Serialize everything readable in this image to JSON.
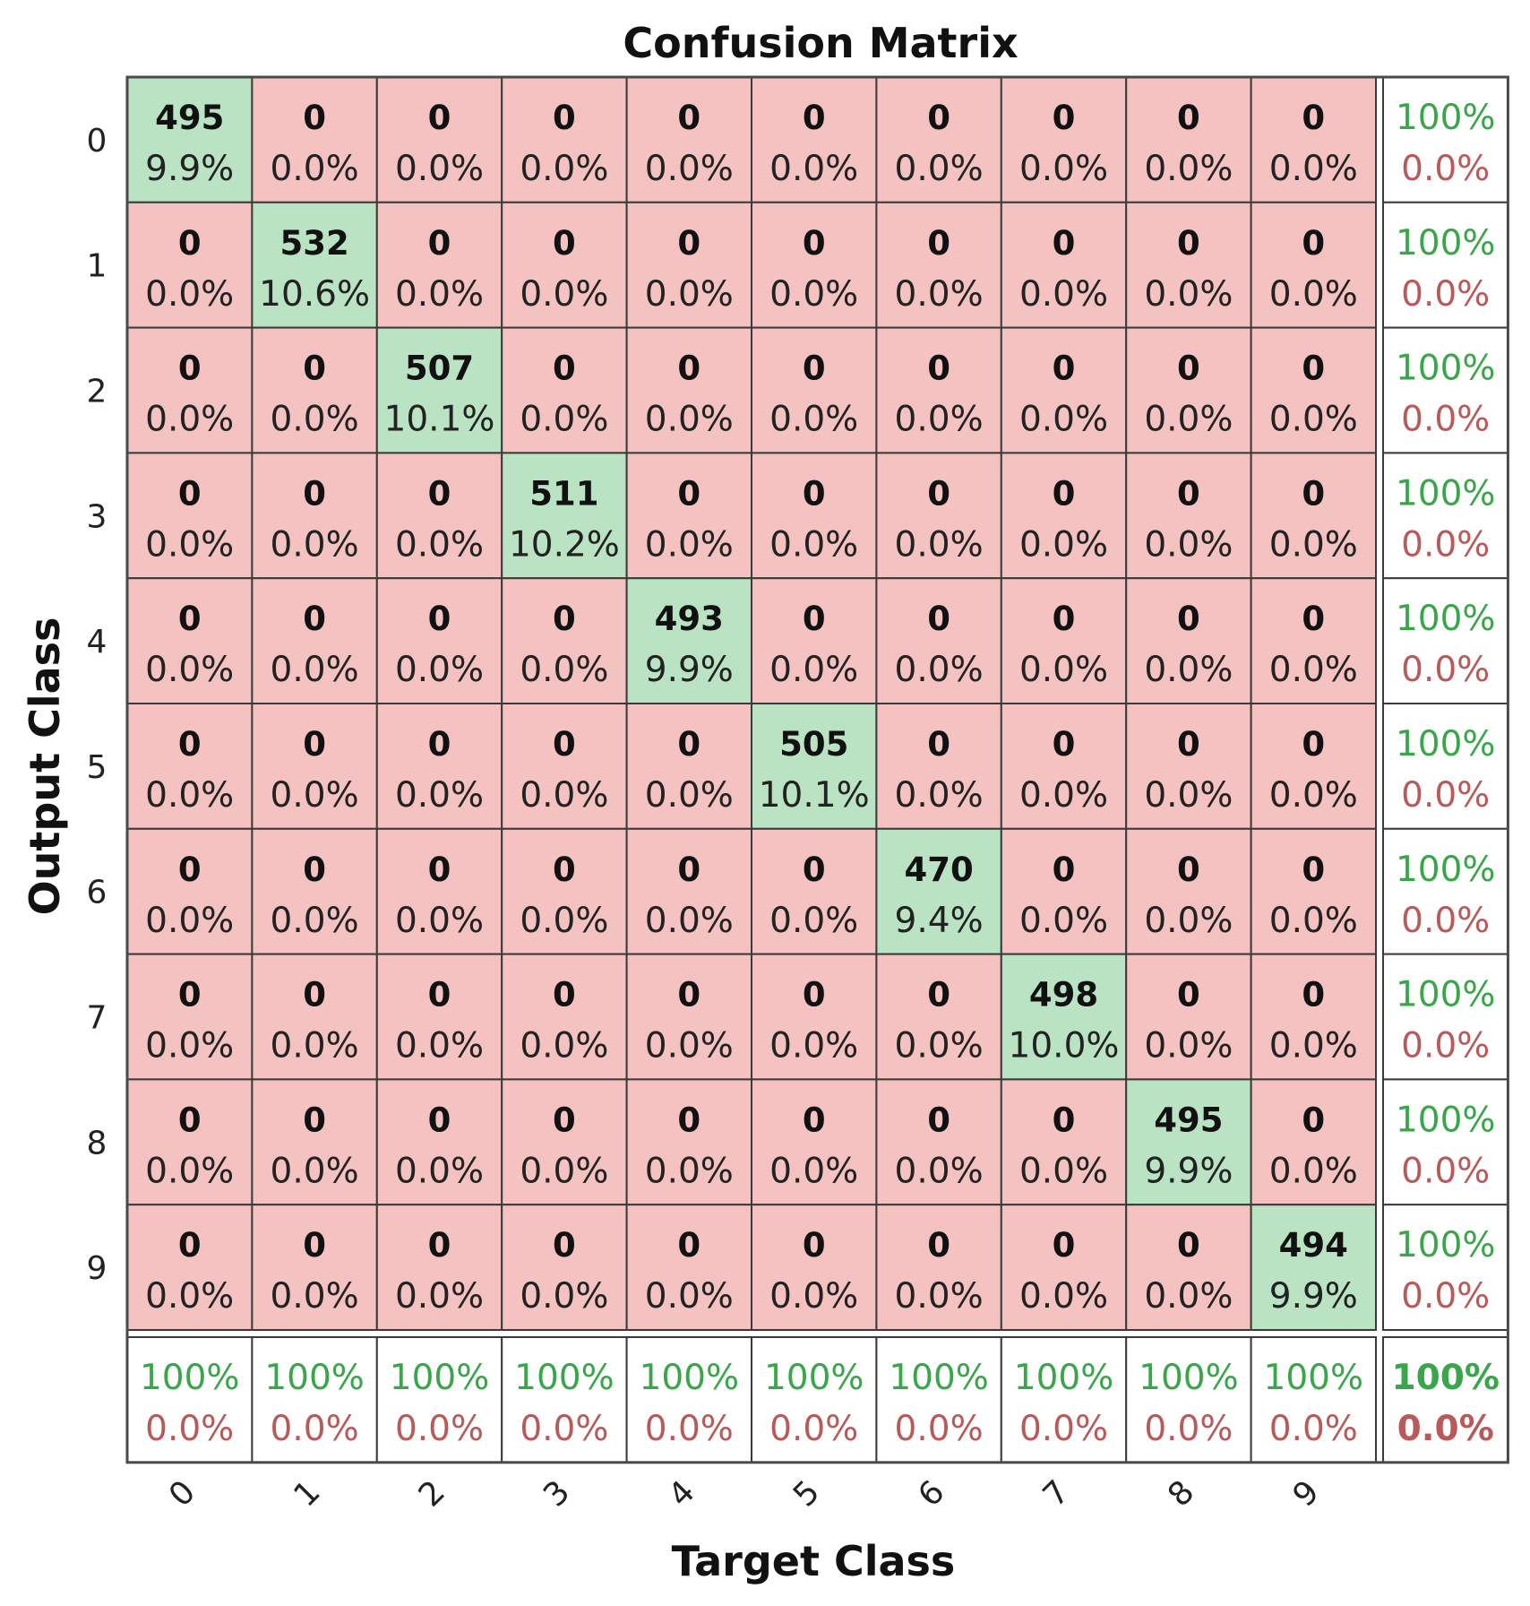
{
  "chart_data": {
    "type": "heatmap",
    "title": "Confusion Matrix",
    "xlabel": "Target Class",
    "ylabel": "Output Class",
    "classes": [
      "0",
      "1",
      "2",
      "3",
      "4",
      "5",
      "6",
      "7",
      "8",
      "9"
    ],
    "counts": [
      [
        495,
        0,
        0,
        0,
        0,
        0,
        0,
        0,
        0,
        0
      ],
      [
        0,
        532,
        0,
        0,
        0,
        0,
        0,
        0,
        0,
        0
      ],
      [
        0,
        0,
        507,
        0,
        0,
        0,
        0,
        0,
        0,
        0
      ],
      [
        0,
        0,
        0,
        511,
        0,
        0,
        0,
        0,
        0,
        0
      ],
      [
        0,
        0,
        0,
        0,
        493,
        0,
        0,
        0,
        0,
        0
      ],
      [
        0,
        0,
        0,
        0,
        0,
        505,
        0,
        0,
        0,
        0
      ],
      [
        0,
        0,
        0,
        0,
        0,
        0,
        470,
        0,
        0,
        0
      ],
      [
        0,
        0,
        0,
        0,
        0,
        0,
        0,
        498,
        0,
        0
      ],
      [
        0,
        0,
        0,
        0,
        0,
        0,
        0,
        0,
        495,
        0
      ],
      [
        0,
        0,
        0,
        0,
        0,
        0,
        0,
        0,
        0,
        494
      ]
    ],
    "percents": [
      [
        "9.9%",
        "0.0%",
        "0.0%",
        "0.0%",
        "0.0%",
        "0.0%",
        "0.0%",
        "0.0%",
        "0.0%",
        "0.0%"
      ],
      [
        "0.0%",
        "10.6%",
        "0.0%",
        "0.0%",
        "0.0%",
        "0.0%",
        "0.0%",
        "0.0%",
        "0.0%",
        "0.0%"
      ],
      [
        "0.0%",
        "0.0%",
        "10.1%",
        "0.0%",
        "0.0%",
        "0.0%",
        "0.0%",
        "0.0%",
        "0.0%",
        "0.0%"
      ],
      [
        "0.0%",
        "0.0%",
        "0.0%",
        "10.2%",
        "0.0%",
        "0.0%",
        "0.0%",
        "0.0%",
        "0.0%",
        "0.0%"
      ],
      [
        "0.0%",
        "0.0%",
        "0.0%",
        "0.0%",
        "9.9%",
        "0.0%",
        "0.0%",
        "0.0%",
        "0.0%",
        "0.0%"
      ],
      [
        "0.0%",
        "0.0%",
        "0.0%",
        "0.0%",
        "0.0%",
        "10.1%",
        "0.0%",
        "0.0%",
        "0.0%",
        "0.0%"
      ],
      [
        "0.0%",
        "0.0%",
        "0.0%",
        "0.0%",
        "0.0%",
        "0.0%",
        "9.4%",
        "0.0%",
        "0.0%",
        "0.0%"
      ],
      [
        "0.0%",
        "0.0%",
        "0.0%",
        "0.0%",
        "0.0%",
        "0.0%",
        "0.0%",
        "10.0%",
        "0.0%",
        "0.0%"
      ],
      [
        "0.0%",
        "0.0%",
        "0.0%",
        "0.0%",
        "0.0%",
        "0.0%",
        "0.0%",
        "0.0%",
        "9.9%",
        "0.0%"
      ],
      [
        "0.0%",
        "0.0%",
        "0.0%",
        "0.0%",
        "0.0%",
        "0.0%",
        "0.0%",
        "0.0%",
        "0.0%",
        "9.9%"
      ]
    ],
    "row_summary": {
      "correct": [
        "100%",
        "100%",
        "100%",
        "100%",
        "100%",
        "100%",
        "100%",
        "100%",
        "100%",
        "100%"
      ],
      "error": [
        "0.0%",
        "0.0%",
        "0.0%",
        "0.0%",
        "0.0%",
        "0.0%",
        "0.0%",
        "0.0%",
        "0.0%",
        "0.0%"
      ]
    },
    "column_summary": {
      "correct": [
        "100%",
        "100%",
        "100%",
        "100%",
        "100%",
        "100%",
        "100%",
        "100%",
        "100%",
        "100%"
      ],
      "error": [
        "0.0%",
        "0.0%",
        "0.0%",
        "0.0%",
        "0.0%",
        "0.0%",
        "0.0%",
        "0.0%",
        "0.0%",
        "0.0%"
      ]
    },
    "overall": {
      "correct": "100%",
      "error": "0.0%"
    },
    "colors": {
      "correct_cell": "#b9e3c3",
      "error_cell": "#f4c2c0",
      "summary_cell": "#ffffff",
      "grid_line": "#3a3a3a",
      "correct_text": "#3aa64a",
      "error_text": "#b85a5a"
    }
  }
}
